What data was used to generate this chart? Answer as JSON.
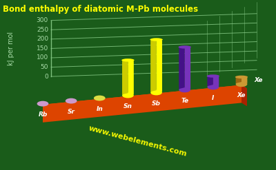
{
  "title": "Bond enthalpy of diatomic M-Pb molecules",
  "ylabel": "kJ per mol",
  "watermark": "www.webelements.com",
  "background_color": "#1a5c1a",
  "elements": [
    "Rb",
    "Sr",
    "In",
    "Sn",
    "Sb",
    "Te",
    "I",
    "Xe"
  ],
  "values": [
    0,
    0,
    0,
    180,
    275,
    220,
    50,
    30
  ],
  "bar_colors": [
    "#cc99cc",
    "#cc99cc",
    "#dddd44",
    "#ffff00",
    "#ffff00",
    "#7733bb",
    "#7733bb",
    "#cc9933"
  ],
  "bar_colors_dark": [
    "#996699",
    "#996699",
    "#999922",
    "#cccc00",
    "#cccc00",
    "#441188",
    "#441188",
    "#996611"
  ],
  "dot_colors": [
    "#cc99cc",
    "#cc99cc",
    "#dddd44",
    "#ffff00",
    "#ffff00",
    "#7733bb",
    "#7733bb",
    "#cc9933"
  ],
  "ylim": [
    0,
    300
  ],
  "yticks": [
    0,
    50,
    100,
    150,
    200,
    250,
    300
  ],
  "title_color": "#ffff00",
  "axis_color": "#aaddaa",
  "grid_color": "#88cc88",
  "label_color": "#ffffff",
  "watermark_color": "#ffff00",
  "base_color": "#dd4400",
  "base_color_dark": "#aa2200",
  "base_color_top": "#ee5500",
  "figsize": [
    4.0,
    2.47
  ],
  "dpi": 100
}
